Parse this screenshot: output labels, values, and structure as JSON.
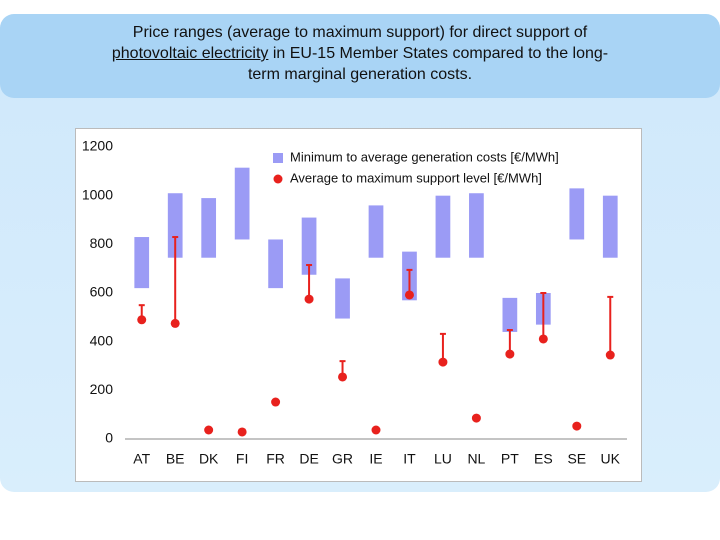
{
  "title_lines": [
    "Price ranges (average to maximum support) for direct support of",
    "photovoltaic electricity",
    "in EU-15 Member States compared to the long-",
    "term marginal generation costs."
  ],
  "chart_data": {
    "type": "bar",
    "categories": [
      "AT",
      "BE",
      "DK",
      "FI",
      "FR",
      "DE",
      "GR",
      "IE",
      "IT",
      "LU",
      "NL",
      "PT",
      "ES",
      "SE",
      "UK"
    ],
    "series": [
      {
        "name": "Minimum to average generation costs [€/MWh]",
        "color": "#9b9bf5",
        "type": "floating_bar",
        "low": [
          620,
          745,
          745,
          820,
          620,
          675,
          495,
          745,
          570,
          745,
          745,
          440,
          470,
          820,
          745
        ],
        "high": [
          830,
          1010,
          990,
          1115,
          820,
          910,
          660,
          960,
          770,
          1000,
          1010,
          580,
          600,
          1030,
          1000
        ]
      },
      {
        "name": "Average to maximum support level [€/MWh]",
        "color": "#e8211d",
        "type": "dot_whisker",
        "values": [
          490,
          475,
          37,
          29,
          152,
          575,
          255,
          37,
          592,
          316,
          86,
          349,
          411,
          53,
          345
        ],
        "max": [
          550,
          830,
          null,
          null,
          null,
          715,
          320,
          null,
          695,
          432,
          null,
          448,
          600,
          null,
          584
        ]
      }
    ],
    "ylim": [
      0,
      1200
    ],
    "yticks": [
      0,
      200,
      400,
      600,
      800,
      1000,
      1200
    ],
    "grid": false
  }
}
